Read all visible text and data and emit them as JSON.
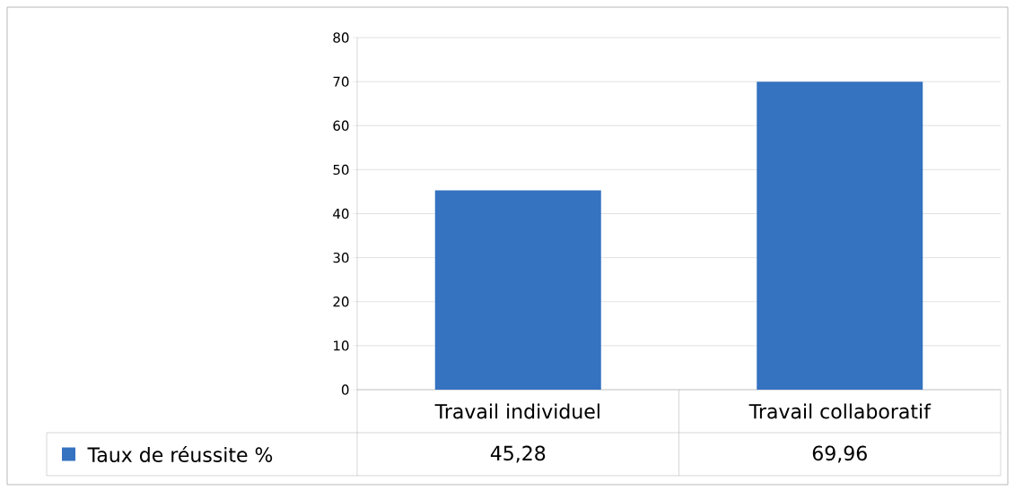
{
  "chart_data": {
    "type": "bar",
    "categories": [
      "Travail individuel",
      "Travail collaboratif"
    ],
    "series": [
      {
        "name": "Taux de réussite %",
        "color": "#3572c0",
        "values": [
          45.28,
          69.96
        ],
        "value_labels": [
          "45,28",
          "69,96"
        ]
      }
    ],
    "ylim": [
      0,
      80
    ],
    "yticks": [
      0,
      10,
      20,
      30,
      40,
      50,
      60,
      70,
      80
    ],
    "grid": "y",
    "legend": "bottom"
  }
}
